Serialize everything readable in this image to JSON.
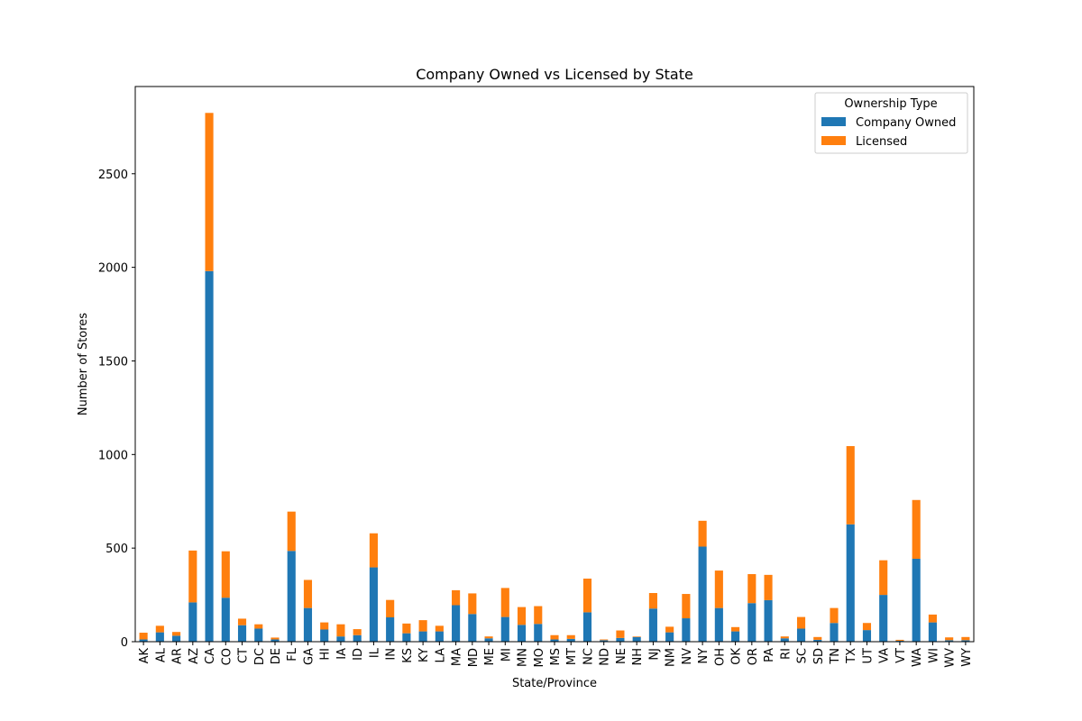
{
  "chart_data": {
    "type": "bar",
    "stacked": true,
    "title": "Company Owned vs Licensed by State",
    "xlabel": "State/Province",
    "ylabel": "Number of Stores",
    "ylim": [
      0,
      2966
    ],
    "yticks": [
      0,
      500,
      1000,
      1500,
      2000,
      2500
    ],
    "grid": false,
    "legend": {
      "title": "Ownership Type",
      "position": "top-right"
    },
    "categories": [
      "AK",
      "AL",
      "AR",
      "AZ",
      "CA",
      "CO",
      "CT",
      "DC",
      "DE",
      "FL",
      "GA",
      "HI",
      "IA",
      "ID",
      "IL",
      "IN",
      "KS",
      "KY",
      "LA",
      "MA",
      "MD",
      "ME",
      "MI",
      "MN",
      "MO",
      "MS",
      "MT",
      "NC",
      "ND",
      "NE",
      "NH",
      "NJ",
      "NM",
      "NV",
      "NY",
      "OH",
      "OK",
      "OR",
      "PA",
      "RI",
      "SC",
      "SD",
      "TN",
      "TX",
      "UT",
      "VA",
      "VT",
      "WA",
      "WI",
      "WV",
      "WY"
    ],
    "series": [
      {
        "name": "Company Owned",
        "color": "#1f77b4",
        "values": [
          12,
          50,
          32,
          210,
          1980,
          235,
          88,
          70,
          12,
          485,
          180,
          65,
          28,
          35,
          397,
          130,
          45,
          55,
          55,
          195,
          148,
          18,
          132,
          90,
          95,
          12,
          15,
          157,
          8,
          20,
          25,
          177,
          50,
          125,
          508,
          180,
          55,
          206,
          222,
          18,
          70,
          10,
          100,
          627,
          62,
          250,
          5,
          443,
          103,
          8,
          8
        ]
      },
      {
        "name": "Licensed",
        "color": "#ff7f0e",
        "values": [
          36,
          35,
          20,
          277,
          845,
          248,
          35,
          23,
          10,
          210,
          150,
          38,
          65,
          32,
          182,
          93,
          52,
          60,
          30,
          80,
          110,
          10,
          155,
          95,
          95,
          23,
          20,
          180,
          4,
          40,
          3,
          83,
          30,
          130,
          138,
          200,
          23,
          155,
          135,
          10,
          62,
          15,
          80,
          418,
          38,
          185,
          5,
          314,
          42,
          15,
          17
        ]
      }
    ]
  }
}
